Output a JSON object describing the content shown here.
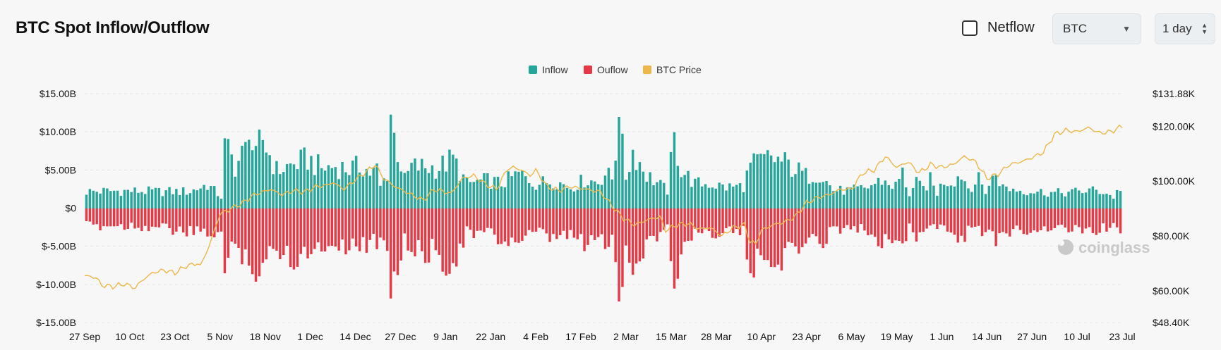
{
  "header": {
    "title": "BTC Spot Inflow/Outflow",
    "netflow_label": "Netflow",
    "netflow_checked": false,
    "coin_select": "BTC",
    "period_select": "1 day"
  },
  "watermark": "coinglass",
  "colors": {
    "inflow": "#26a69a",
    "outflow": "#e63946",
    "price": "#ecb84a",
    "grid": "#e4e4e4"
  },
  "chart_data": {
    "type": "bar",
    "title": "BTC Spot Inflow/Outflow",
    "legend": [
      {
        "name": "Inflow",
        "color": "#26a69a"
      },
      {
        "name": "Ouflow",
        "color": "#e63946"
      },
      {
        "name": "BTC Price",
        "color": "#ecb84a"
      }
    ],
    "legend_position": "top-center",
    "grid": true,
    "x_ticks": [
      "27 Sep",
      "10 Oct",
      "23 Oct",
      "5 Nov",
      "18 Nov",
      "1 Dec",
      "14 Dec",
      "27 Dec",
      "9 Jan",
      "22 Jan",
      "4 Feb",
      "17 Feb",
      "2 Mar",
      "15 Mar",
      "28 Mar",
      "10 Apr",
      "23 Apr",
      "6 May",
      "19 May",
      "1 Jun",
      "14 Jun",
      "27 Jun",
      "10 Jul",
      "23 Jul"
    ],
    "y_left": {
      "ticks": [
        "$15.00B",
        "$10.00B",
        "$5.00B",
        "$0",
        "$-5.00B",
        "$-10.00B",
        "$-15.00B"
      ],
      "range": [
        -15,
        15
      ],
      "unit": "B USD"
    },
    "y_right": {
      "ticks": [
        "$131.88K",
        "$120.00K",
        "$100.00K",
        "$80.00K",
        "$60.00K",
        "$48.40K"
      ],
      "range": [
        48.4,
        131.88
      ],
      "unit": "K USD"
    },
    "x_range": [
      "2024-09-27",
      "2025-07-23"
    ],
    "bar_count": 300,
    "series": [
      {
        "name": "Inflow",
        "type": "bar",
        "anchors": [
          [
            0,
            2.4
          ],
          [
            10,
            2.5
          ],
          [
            20,
            2.4
          ],
          [
            30,
            2.4
          ],
          [
            35,
            3.4
          ],
          [
            39,
            1.6
          ],
          [
            40,
            9.2
          ],
          [
            43,
            6.0
          ],
          [
            47,
            9.0
          ],
          [
            49,
            8.2
          ],
          [
            51,
            9.8
          ],
          [
            55,
            5.4
          ],
          [
            60,
            6.2
          ],
          [
            64,
            7.0
          ],
          [
            68,
            5.6
          ],
          [
            72,
            6.0
          ],
          [
            76,
            5.6
          ],
          [
            80,
            6.0
          ],
          [
            82,
            5.0
          ],
          [
            84,
            5.5
          ],
          [
            85,
            3.0
          ],
          [
            87,
            5.0
          ],
          [
            88,
            12.3
          ],
          [
            92,
            4.0
          ],
          [
            94,
            5.9
          ],
          [
            100,
            5.8
          ],
          [
            102,
            5.8
          ],
          [
            106,
            7.0
          ],
          [
            110,
            3.5
          ],
          [
            116,
            4.0
          ],
          [
            120,
            3.5
          ],
          [
            125,
            4.9
          ],
          [
            130,
            3.5
          ],
          [
            135,
            4.0
          ],
          [
            140,
            3.0
          ],
          [
            144,
            4.0
          ],
          [
            148,
            3.8
          ],
          [
            150,
            5.0
          ],
          [
            152,
            4.2
          ],
          [
            154,
            12.0
          ],
          [
            156,
            4.5
          ],
          [
            158,
            8.2
          ],
          [
            162,
            4.8
          ],
          [
            168,
            2.5
          ],
          [
            170,
            10.0
          ],
          [
            172,
            5.5
          ],
          [
            176,
            3.5
          ],
          [
            180,
            3.5
          ],
          [
            185,
            3.0
          ],
          [
            190,
            3.2
          ],
          [
            192,
            6.0
          ],
          [
            198,
            7.2
          ],
          [
            202,
            6.4
          ],
          [
            205,
            5.6
          ],
          [
            208,
            4.6
          ],
          [
            212,
            5.0
          ],
          [
            216,
            2.6
          ],
          [
            220,
            2.5
          ],
          [
            225,
            2.8
          ],
          [
            230,
            4.0
          ],
          [
            232,
            3.5
          ],
          [
            234,
            3.2
          ],
          [
            236,
            5.0
          ],
          [
            238,
            2.0
          ],
          [
            240,
            3.5
          ],
          [
            242,
            2.8
          ],
          [
            244,
            4.0
          ],
          [
            246,
            2.2
          ],
          [
            248,
            4.0
          ],
          [
            250,
            3.8
          ],
          [
            253,
            4.9
          ],
          [
            255,
            3.0
          ],
          [
            258,
            4.0
          ],
          [
            260,
            2.5
          ],
          [
            263,
            5.0
          ],
          [
            265,
            3.0
          ],
          [
            270,
            2.6
          ],
          [
            275,
            2.4
          ],
          [
            280,
            2.2
          ],
          [
            285,
            2.3
          ],
          [
            290,
            2.6
          ],
          [
            294,
            2.4
          ],
          [
            297,
            1.6
          ],
          [
            299,
            3.0
          ]
        ]
      },
      {
        "name": "Ouflow",
        "type": "bar",
        "anchors": [
          [
            0,
            -2.5
          ],
          [
            10,
            -2.4
          ],
          [
            20,
            -2.6
          ],
          [
            30,
            -3.5
          ],
          [
            35,
            -3.5
          ],
          [
            39,
            -3.4
          ],
          [
            40,
            -8.5
          ],
          [
            43,
            -5.0
          ],
          [
            47,
            -7.5
          ],
          [
            49,
            -9.6
          ],
          [
            51,
            -8.2
          ],
          [
            55,
            -5.5
          ],
          [
            60,
            -7.0
          ],
          [
            64,
            -6.0
          ],
          [
            68,
            -5.4
          ],
          [
            72,
            -4.6
          ],
          [
            76,
            -5.4
          ],
          [
            80,
            -4.8
          ],
          [
            82,
            -5.5
          ],
          [
            84,
            -4.5
          ],
          [
            85,
            -3.5
          ],
          [
            87,
            -5.5
          ],
          [
            88,
            -11.8
          ],
          [
            92,
            -4.5
          ],
          [
            94,
            -6.4
          ],
          [
            100,
            -6.0
          ],
          [
            102,
            -7.2
          ],
          [
            106,
            -7.5
          ],
          [
            110,
            -3.5
          ],
          [
            116,
            -3.5
          ],
          [
            120,
            -4.6
          ],
          [
            125,
            -4.6
          ],
          [
            130,
            -3.5
          ],
          [
            135,
            -4.5
          ],
          [
            140,
            -3.5
          ],
          [
            144,
            -5.5
          ],
          [
            148,
            -3.5
          ],
          [
            150,
            -5.6
          ],
          [
            152,
            -4.5
          ],
          [
            154,
            -12.2
          ],
          [
            156,
            -5.5
          ],
          [
            158,
            -8.5
          ],
          [
            162,
            -4.8
          ],
          [
            168,
            -2.8
          ],
          [
            170,
            -10.5
          ],
          [
            172,
            -5.6
          ],
          [
            176,
            -3.2
          ],
          [
            180,
            -3.5
          ],
          [
            185,
            -3.0
          ],
          [
            190,
            -3.5
          ],
          [
            192,
            -8.5
          ],
          [
            198,
            -7.0
          ],
          [
            202,
            -6.8
          ],
          [
            205,
            -5.6
          ],
          [
            208,
            -4.8
          ],
          [
            212,
            -4.8
          ],
          [
            216,
            -3.0
          ],
          [
            220,
            -2.5
          ],
          [
            225,
            -3.0
          ],
          [
            230,
            -4.5
          ],
          [
            232,
            -3.8
          ],
          [
            234,
            -4.0
          ],
          [
            236,
            -6.6
          ],
          [
            238,
            -2.3
          ],
          [
            240,
            -4.0
          ],
          [
            242,
            -3.0
          ],
          [
            244,
            -2.5
          ],
          [
            246,
            -2.6
          ],
          [
            248,
            -3.0
          ],
          [
            250,
            -3.5
          ],
          [
            253,
            -4.5
          ],
          [
            255,
            -3.0
          ],
          [
            258,
            -3.5
          ],
          [
            260,
            -2.8
          ],
          [
            263,
            -5.5
          ],
          [
            265,
            -3.5
          ],
          [
            270,
            -2.8
          ],
          [
            275,
            -3.0
          ],
          [
            280,
            -2.5
          ],
          [
            285,
            -3.2
          ],
          [
            290,
            -2.8
          ],
          [
            294,
            -3.0
          ],
          [
            297,
            -2.2
          ],
          [
            299,
            -3.0
          ]
        ]
      },
      {
        "name": "BTC Price",
        "type": "line",
        "axis": "right",
        "anchors": [
          [
            0,
            65.5
          ],
          [
            4,
            64.8
          ],
          [
            6,
            62.0
          ],
          [
            10,
            61.5
          ],
          [
            14,
            62.5
          ],
          [
            18,
            61.0
          ],
          [
            20,
            63.5
          ],
          [
            24,
            66.5
          ],
          [
            28,
            67.5
          ],
          [
            32,
            66.5
          ],
          [
            36,
            69.0
          ],
          [
            40,
            70.0
          ],
          [
            41,
            69.0
          ],
          [
            44,
            76.0
          ],
          [
            48,
            88.0
          ],
          [
            52,
            90.0
          ],
          [
            56,
            92.0
          ],
          [
            60,
            95.0
          ],
          [
            66,
            97.0
          ],
          [
            70,
            95.0
          ],
          [
            74,
            96.5
          ],
          [
            78,
            96.0
          ],
          [
            82,
            98.0
          ],
          [
            86,
            98.5
          ],
          [
            88,
            99.5
          ],
          [
            92,
            97.0
          ],
          [
            96,
            100.5
          ],
          [
            100,
            103.5
          ],
          [
            103,
            106.0
          ],
          [
            106,
            101.0
          ],
          [
            110,
            98.0
          ],
          [
            116,
            95.0
          ],
          [
            120,
            93.0
          ],
          [
            124,
            97.0
          ],
          [
            130,
            95.5
          ],
          [
            134,
            101.0
          ],
          [
            138,
            102.0
          ],
          [
            142,
            99.0
          ],
          [
            146,
            97.0
          ],
          [
            150,
            104.5
          ],
          [
            152,
            105.0
          ],
          [
            155,
            104.0
          ],
          [
            158,
            102.0
          ],
          [
            160,
            104.0
          ],
          [
            164,
            98.0
          ],
          [
            168,
            96.5
          ],
          [
            172,
            98.0
          ],
          [
            178,
            97.0
          ],
          [
            183,
            96.0
          ],
          [
            187,
            91.0
          ],
          [
            191,
            86.5
          ],
          [
            195,
            84.0
          ],
          [
            200,
            86.0
          ],
          [
            204,
            87.0
          ],
          [
            206,
            82.0
          ],
          [
            210,
            84.0
          ],
          [
            214,
            84.5
          ],
          [
            218,
            82.5
          ],
          [
            222,
            83.0
          ],
          [
            226,
            80.0
          ],
          [
            230,
            83.0
          ],
          [
            234,
            84.0
          ],
          [
            236,
            78.0
          ],
          [
            238,
            77.0
          ],
          [
            240,
            82.0
          ],
          [
            244,
            84.0
          ],
          [
            248,
            85.0
          ],
          [
            252,
            87.0
          ],
          [
            256,
            92.0
          ],
          [
            260,
            94.0
          ],
          [
            264,
            95.0
          ],
          [
            268,
            97.0
          ],
          [
            272,
            97.0
          ],
          [
            276,
            103.0
          ],
          [
            280,
            104.0
          ],
          [
            284,
            109.0
          ],
          [
            288,
            105.0
          ],
          [
            292,
            107.0
          ],
          [
            296,
            103.0
          ],
          [
            300,
            106.0
          ],
          [
            304,
            105.0
          ],
          [
            308,
            106.0
          ],
          [
            312,
            109.0
          ],
          [
            316,
            107.0
          ],
          [
            320,
            101.0
          ],
          [
            324,
            102.5
          ],
          [
            328,
            106.0
          ],
          [
            332,
            107.0
          ],
          [
            336,
            108.5
          ],
          [
            340,
            110.5
          ],
          [
            344,
            117.0
          ],
          [
            348,
            118.5
          ],
          [
            352,
            118.0
          ],
          [
            356,
            119.5
          ],
          [
            360,
            117.5
          ],
          [
            364,
            118.0
          ],
          [
            368,
            120.0
          ]
        ]
      }
    ]
  }
}
